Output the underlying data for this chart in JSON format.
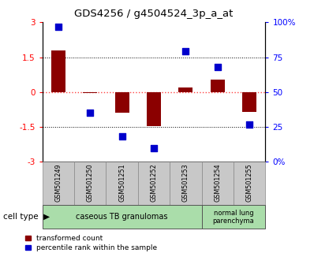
{
  "title": "GDS4256 / g4504524_3p_a_at",
  "samples": [
    "GSM501249",
    "GSM501250",
    "GSM501251",
    "GSM501252",
    "GSM501253",
    "GSM501254",
    "GSM501255"
  ],
  "transformed_count": [
    1.8,
    -0.05,
    -0.9,
    -1.45,
    0.2,
    0.55,
    -0.85
  ],
  "percentile_rank": [
    97,
    35,
    18,
    10,
    79,
    68,
    27
  ],
  "ylim_left": [
    -3,
    3
  ],
  "yticks_left": [
    -3,
    -1.5,
    0,
    1.5,
    3
  ],
  "ytick_labels_left": [
    "-3",
    "-1.5",
    "0",
    "1.5",
    "3"
  ],
  "right_tick_positions": [
    -3,
    -1.5,
    0,
    1.5,
    3
  ],
  "right_tick_labels": [
    "0%",
    "25",
    "50",
    "75",
    "100%"
  ],
  "cell_type_groups": [
    {
      "label": "caseous TB granulomas",
      "start": 0,
      "end": 4,
      "color": "#aaddaa"
    },
    {
      "label": "normal lung\nparenchyma",
      "start": 5,
      "end": 6,
      "color": "#aaddaa"
    }
  ],
  "bar_color": "#8B0000",
  "dot_color": "#0000CC",
  "bar_width": 0.45,
  "dot_size": 40,
  "hline_zero_color": "#FF4444",
  "hgrid_color": "black",
  "xtick_box_color": "#C8C8C8",
  "legend_red_label": "transformed count",
  "legend_blue_label": "percentile rank within the sample",
  "cell_type_label": "cell type",
  "cell_type_arrow": "▶"
}
